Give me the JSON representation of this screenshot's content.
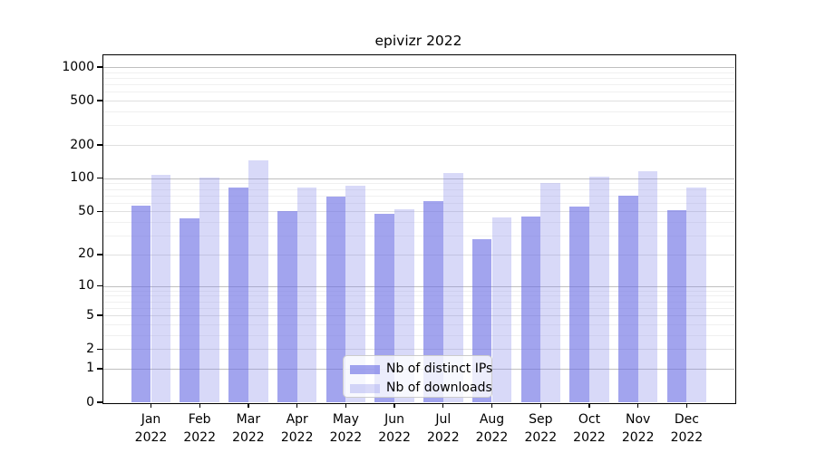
{
  "title": "epivizr 2022",
  "chart_data": {
    "type": "bar",
    "title": "epivizr 2022",
    "categories": [
      "Jan 2022",
      "Feb 2022",
      "Mar 2022",
      "Apr 2022",
      "May 2022",
      "Jun 2022",
      "Jul 2022",
      "Aug 2022",
      "Sep 2022",
      "Oct 2022",
      "Nov 2022",
      "Dec 2022"
    ],
    "series": [
      {
        "name": "Nb of distinct IPs",
        "color": "#a2a4ee",
        "color_rgba": "rgba(107,111,228,0.63)",
        "values": [
          57,
          43,
          82,
          50,
          69,
          48,
          62,
          28,
          45,
          55,
          70,
          51
        ]
      },
      {
        "name": "Nb of downloads",
        "color": "#d8d9f8",
        "color_rgba": "rgba(133,136,233,0.32)",
        "values": [
          107,
          102,
          145,
          83,
          85,
          52,
          112,
          44,
          91,
          103,
          117,
          83
        ]
      }
    ],
    "xlabel": "",
    "ylabel": "",
    "yscale": "log1p",
    "ylim": [
      0,
      1300
    ],
    "yticks": [
      0,
      1,
      2,
      5,
      10,
      20,
      50,
      100,
      200,
      500,
      1000
    ],
    "grid": true,
    "legend_position": "lower center"
  },
  "legend": {
    "items": [
      {
        "label": "Nb of distinct IPs"
      },
      {
        "label": "Nb of downloads"
      }
    ]
  }
}
